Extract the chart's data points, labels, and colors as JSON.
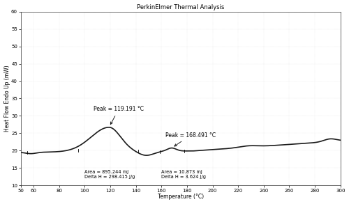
{
  "title": "PerkinElmer Thermal Analysis",
  "xlabel": "Temperature (°C)",
  "ylabel": "Heat Flow Endo Up (mW)",
  "xlim": [
    50,
    300
  ],
  "ylim": [
    10,
    60
  ],
  "xticks": [
    50,
    60,
    80,
    100,
    120,
    140,
    160,
    180,
    200,
    220,
    240,
    260,
    280,
    300
  ],
  "yticks": [
    10,
    15,
    20,
    25,
    30,
    35,
    40,
    45,
    50,
    55,
    60
  ],
  "peak1_label": "Peak = 119.191 °C",
  "peak1_area": "Area = 895.244 mJ",
  "peak1_deltaH": "Delta H = 298.415 J/g",
  "peak2_label": "Peak = 168.491 °C",
  "peak2_area": "Area = 10.873 mJ",
  "peak2_deltaH": "Delta H = 3.624 J/g",
  "line_color": "#1a1a1a",
  "bg_color": "#ffffff",
  "plot_bg": "#ffffff",
  "title_fontsize": 6,
  "axis_fontsize": 5.5,
  "tick_fontsize": 5,
  "annot_fontsize": 5.5
}
